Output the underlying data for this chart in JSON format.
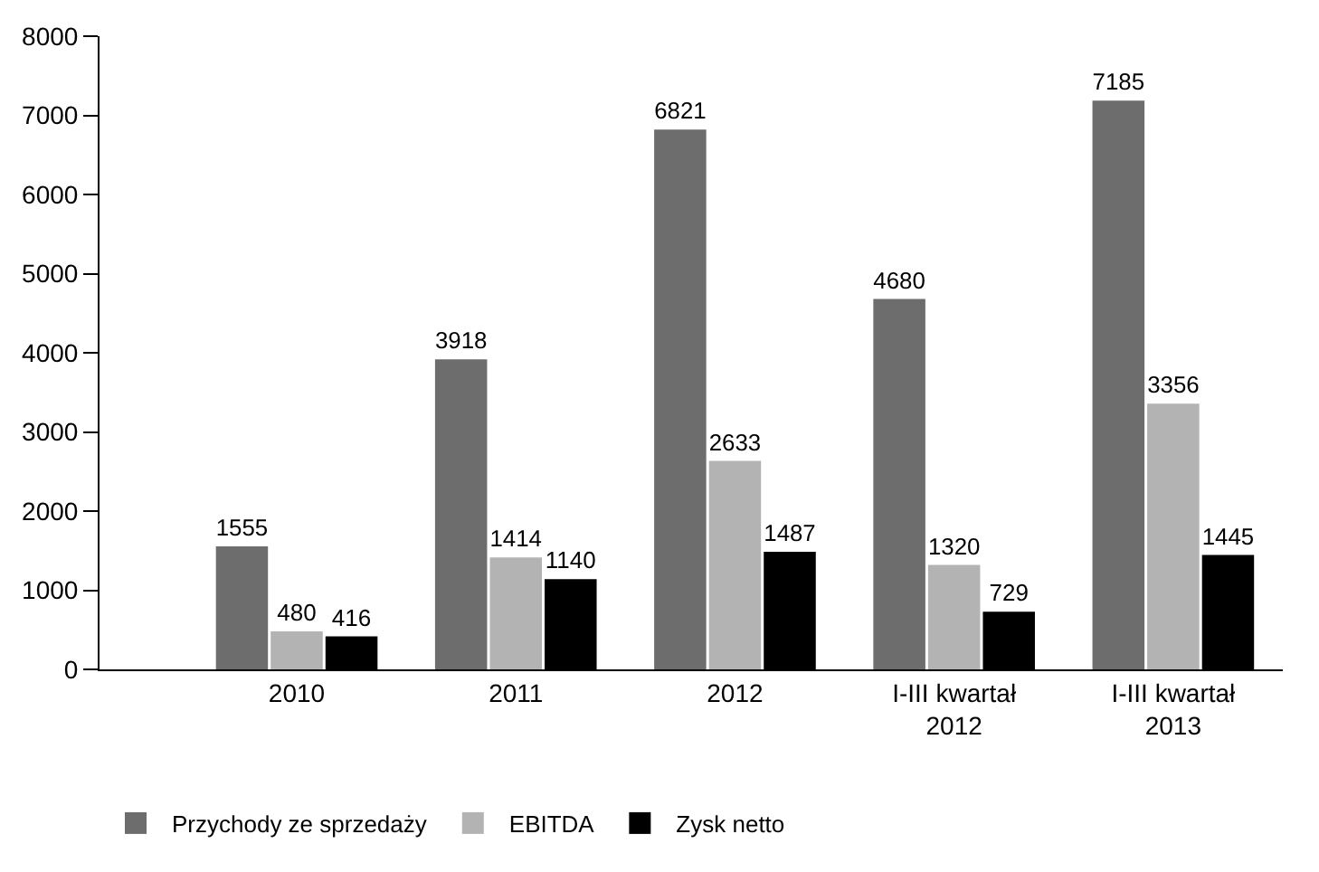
{
  "chart_data": {
    "type": "bar",
    "categories": [
      "2010",
      "2011",
      "2012",
      "I-III kwartał 2012",
      "I-III kwartał 2013"
    ],
    "series": [
      {
        "name": "Przychody ze sprzedaży",
        "color": "#6d6d6d",
        "values": [
          1555,
          3918,
          6821,
          4680,
          7185
        ]
      },
      {
        "name": "EBITDA",
        "color": "#b3b3b3",
        "values": [
          480,
          1414,
          2633,
          1320,
          3356
        ]
      },
      {
        "name": "Zysk netto",
        "color": "#000000",
        "values": [
          416,
          1140,
          1487,
          729,
          1445
        ]
      }
    ],
    "ylim": [
      0,
      8000
    ],
    "yticks": [
      0,
      1000,
      2000,
      3000,
      4000,
      5000,
      6000,
      7000,
      8000
    ],
    "data_labels": true,
    "legend": "bottom"
  }
}
